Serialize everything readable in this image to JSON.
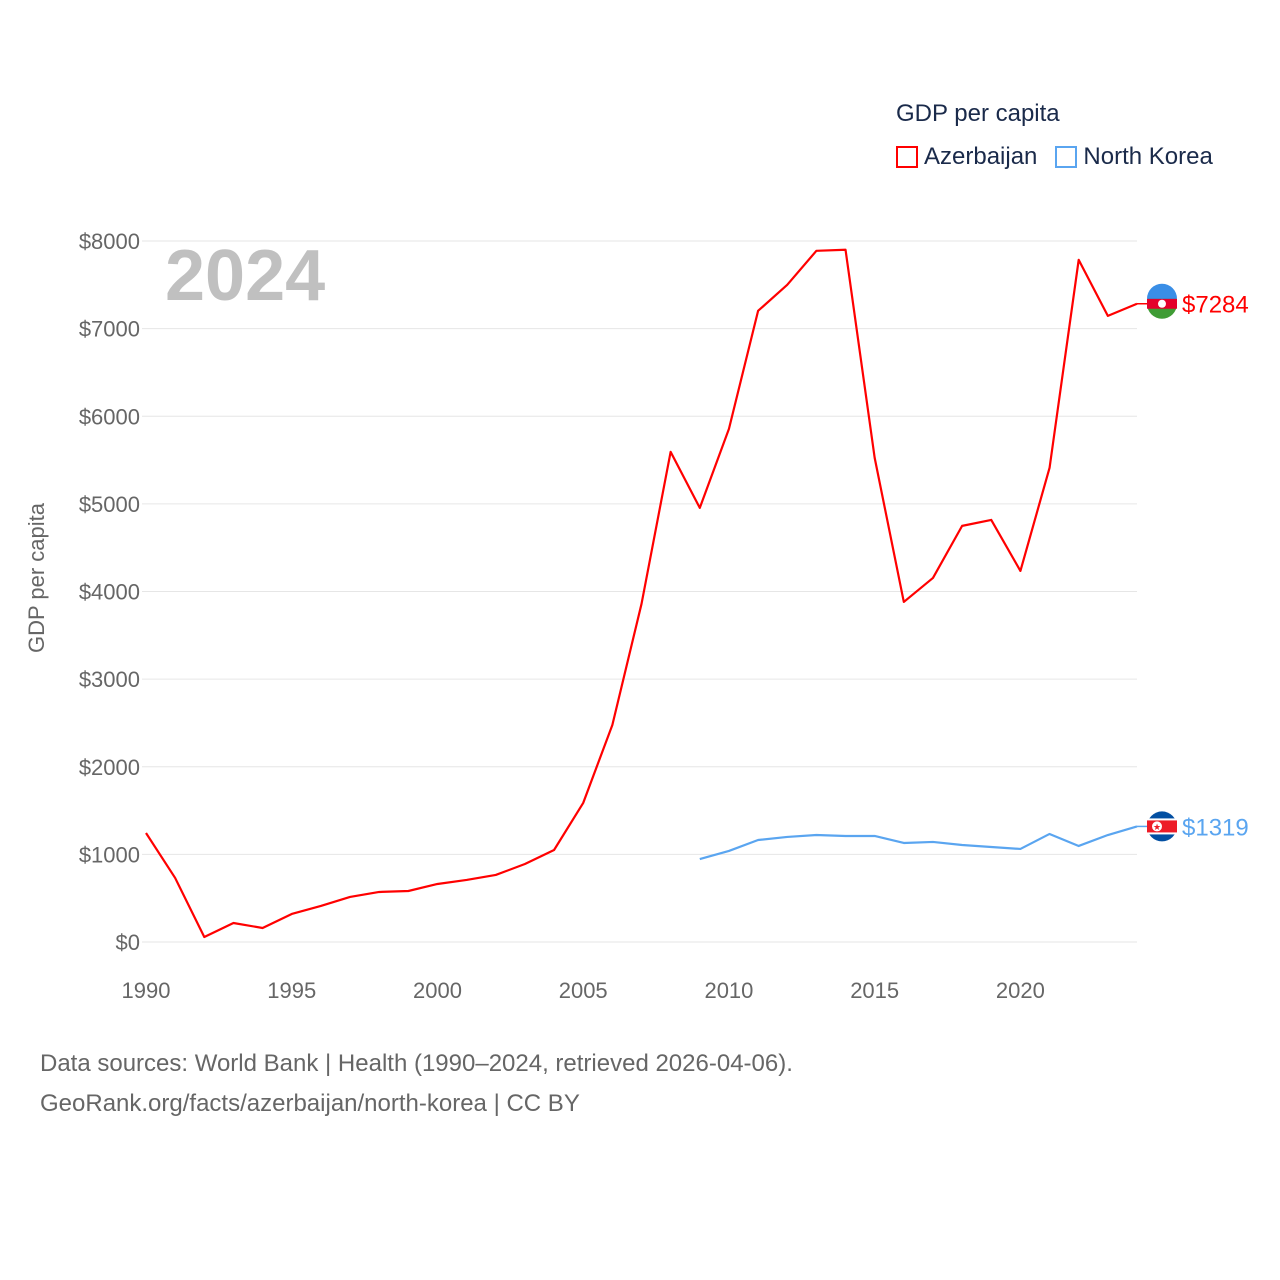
{
  "legend": {
    "title": "GDP per capita",
    "items": [
      {
        "label": "Azerbaijan",
        "color": "#ff0000"
      },
      {
        "label": "North Korea",
        "color": "#5aa5f0"
      }
    ]
  },
  "footer": {
    "line1": "Data sources: World Bank | Health (1990–2024, retrieved 2026-04-06).",
    "line2": "GeoRank.org/facts/azerbaijan/north-korea | CC BY"
  },
  "chart_data": {
    "type": "line",
    "year_label": "2024",
    "ylabel": "GDP per capita",
    "xlim": [
      1990,
      2024
    ],
    "ylim": [
      0,
      8000
    ],
    "xticks": [
      1990,
      1995,
      2000,
      2005,
      2010,
      2015,
      2020
    ],
    "xtick_labels": [
      "1990",
      "1995",
      "2000",
      "2005",
      "2010",
      "2015",
      "2020"
    ],
    "yticks": [
      0,
      1000,
      2000,
      3000,
      4000,
      5000,
      6000,
      7000,
      8000
    ],
    "ytick_labels": [
      "$0",
      "$1000",
      "$2000",
      "$3000",
      "$4000",
      "$5000",
      "$6000",
      "$7000",
      "$8000"
    ],
    "grid": true,
    "legend_position": "top-right",
    "series": [
      {
        "name": "Azerbaijan",
        "color": "#ff0000",
        "end_label": "$7284",
        "x": [
          1990,
          1991,
          1992,
          1993,
          1994,
          1995,
          1996,
          1997,
          1998,
          1999,
          2000,
          2001,
          2002,
          2003,
          2004,
          2005,
          2006,
          2007,
          2008,
          2009,
          2010,
          2011,
          2012,
          2013,
          2014,
          2015,
          2016,
          2017,
          2018,
          2019,
          2020,
          2021,
          2022,
          2023,
          2024
        ],
        "values": [
          1244,
          731,
          57,
          217,
          160,
          320,
          411,
          514,
          571,
          582,
          662,
          708,
          765,
          890,
          1050,
          1587,
          2477,
          3858,
          5594,
          4954,
          5856,
          7203,
          7500,
          7888,
          7900,
          5525,
          3881,
          4155,
          4749,
          4817,
          4235,
          5411,
          7785,
          7146,
          7284
        ]
      },
      {
        "name": "North Korea",
        "color": "#5aa5f0",
        "end_label": "$1319",
        "x": [
          2009,
          2010,
          2011,
          2012,
          2013,
          2014,
          2015,
          2016,
          2017,
          2018,
          2019,
          2020,
          2021,
          2022,
          2023,
          2024
        ],
        "values": [
          947,
          1039,
          1164,
          1199,
          1221,
          1210,
          1210,
          1130,
          1142,
          1107,
          1084,
          1062,
          1233,
          1096,
          1221,
          1319
        ]
      }
    ]
  }
}
